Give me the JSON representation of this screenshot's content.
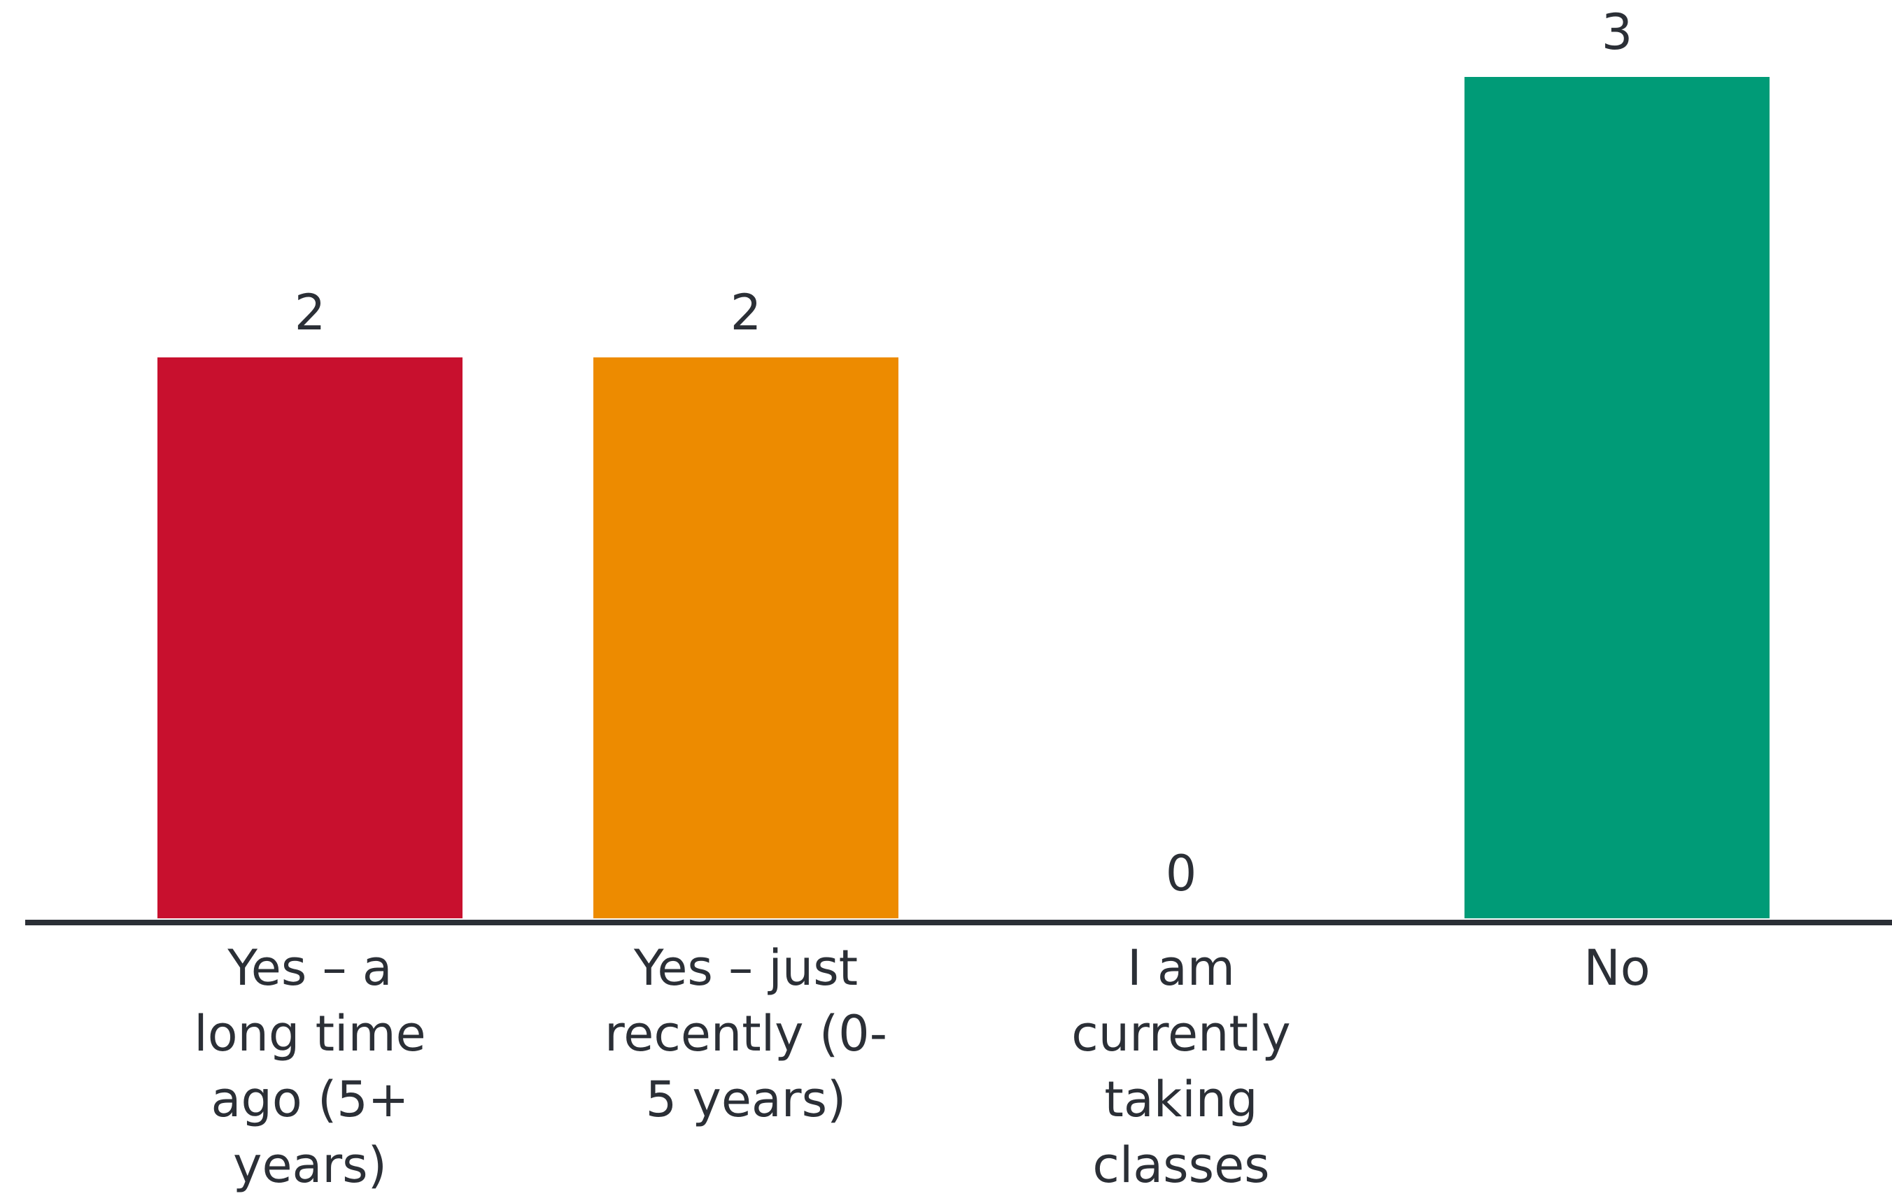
{
  "chart_data": {
    "type": "bar",
    "categories": [
      [
        "Yes – a",
        "long time",
        "ago (5+",
        "years)"
      ],
      [
        "Yes – just",
        "recently (0-",
        "5 years)"
      ],
      [
        "I am",
        "currently",
        "taking",
        "classes"
      ],
      [
        "No"
      ]
    ],
    "values": [
      2,
      2,
      0,
      3
    ],
    "colors": [
      "#c8102e",
      "#ed8b00",
      "#ed8b00",
      "#009b77"
    ],
    "title": "",
    "xlabel": "",
    "ylabel": "",
    "ylim": [
      0,
      3
    ],
    "grid": false,
    "legend": "none",
    "axis_color": "#2b2f36"
  }
}
